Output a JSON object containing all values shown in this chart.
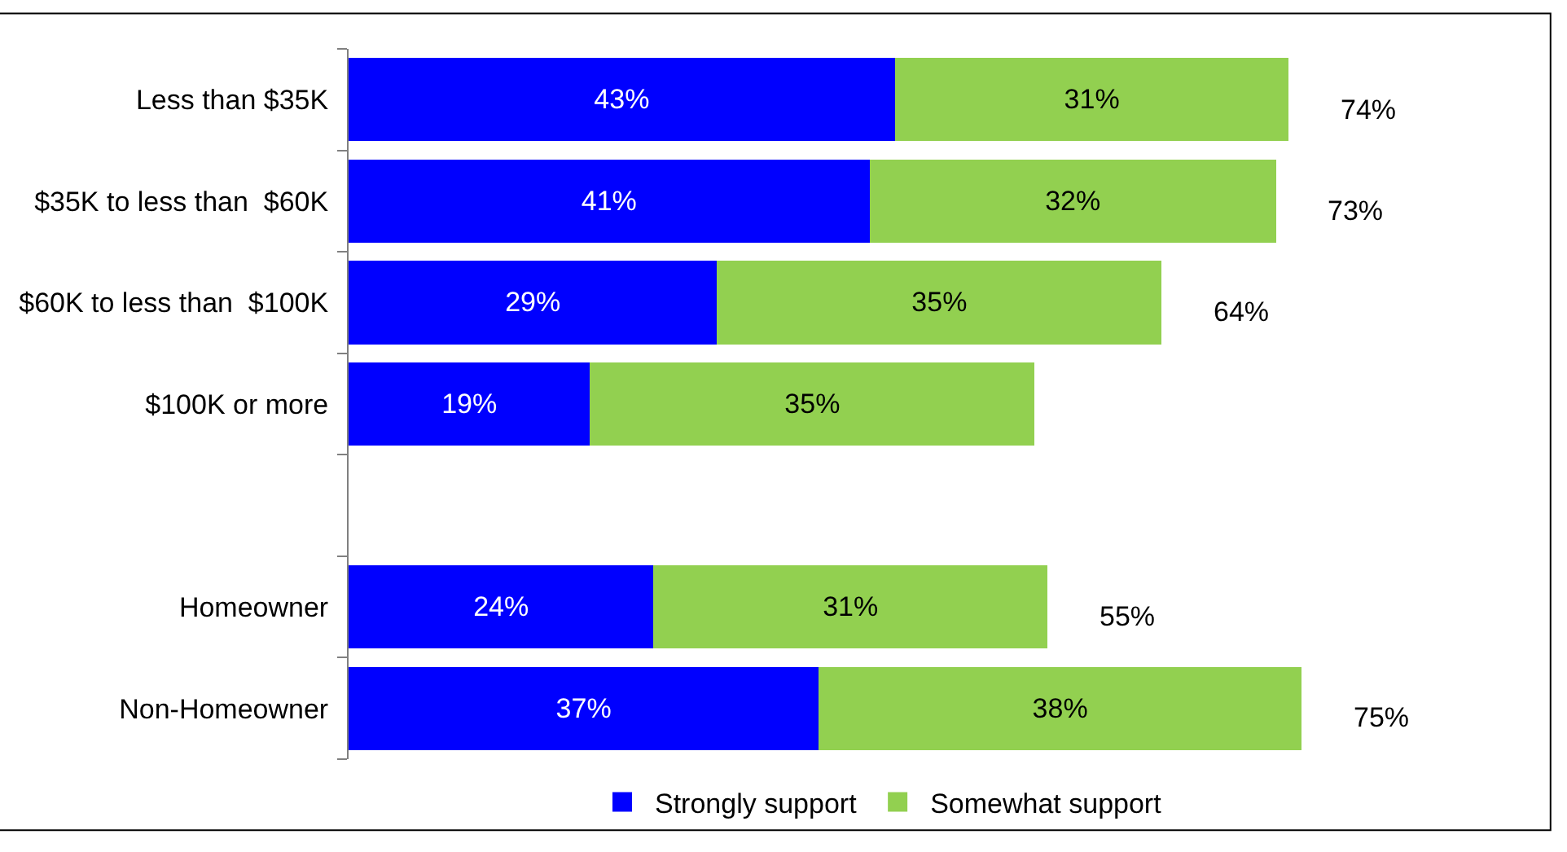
{
  "chart_data": {
    "type": "bar",
    "orientation": "horizontal",
    "stacked": true,
    "legend": "bottom",
    "tick_labels": "y",
    "categories": [
      "Less than $35K",
      "$35K to less than  $60K",
      "$60K to less than  $100K",
      "$100K or more",
      null,
      "Homeowner",
      "Non-Homeowner"
    ],
    "series": [
      {
        "name": "Strongly support",
        "color": "#0000ff",
        "values": [
          43,
          41,
          29,
          19,
          null,
          24,
          37
        ],
        "value_labels": [
          "43%",
          "41%",
          "29%",
          "19%",
          null,
          "24%",
          "37%"
        ]
      },
      {
        "name": "Somewhat support",
        "color": "#92d050",
        "values": [
          31,
          32,
          35,
          35,
          null,
          31,
          38
        ],
        "value_labels": [
          "31%",
          "32%",
          "35%",
          "35%",
          null,
          "31%",
          "38%"
        ]
      }
    ],
    "totals": [
      "74%",
      "73%",
      "64%",
      null,
      null,
      "55%",
      "75%"
    ]
  }
}
